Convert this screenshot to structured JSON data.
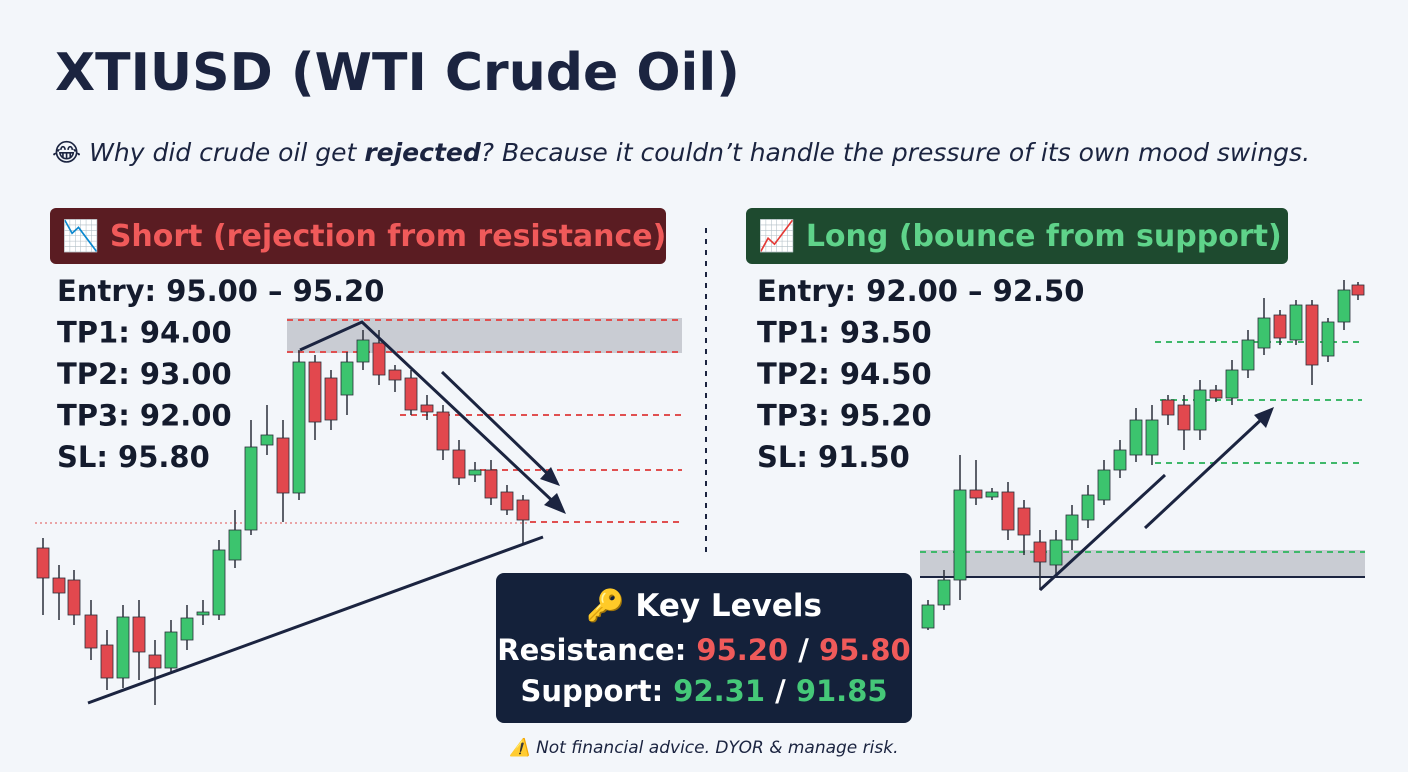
{
  "header": {
    "title": "XTIUSD (WTI Crude Oil)",
    "joke_icon": "😂",
    "joke_before": "Why did crude oil get ",
    "joke_bold": "rejected",
    "joke_after": "? Because it couldn’t handle the pressure of its own mood swings."
  },
  "short": {
    "icon": "📉",
    "label": "Short (rejection from resistance)",
    "levels": [
      "Entry: 95.00 – 95.20",
      "TP1: 94.00",
      "TP2: 93.00",
      "TP3: 92.00",
      "SL: 95.80"
    ]
  },
  "long": {
    "icon": "📈",
    "label": "Long (bounce from support)",
    "levels": [
      "Entry: 92.00 – 92.50",
      "TP1: 93.50",
      "TP2: 94.50",
      "TP3: 95.20",
      "SL: 91.50"
    ]
  },
  "key_levels": {
    "icon": "🔑",
    "title": "Key Levels",
    "resistance_label": "Resistance:",
    "resistance_1": "95.20",
    "resistance_2": "95.80",
    "support_label": "Support:",
    "support_1": "92.31",
    "support_2": "91.85",
    "separator": "/"
  },
  "footer": {
    "icon": "⚠️",
    "text": "Not financial advice. DYOR & manage risk."
  }
}
